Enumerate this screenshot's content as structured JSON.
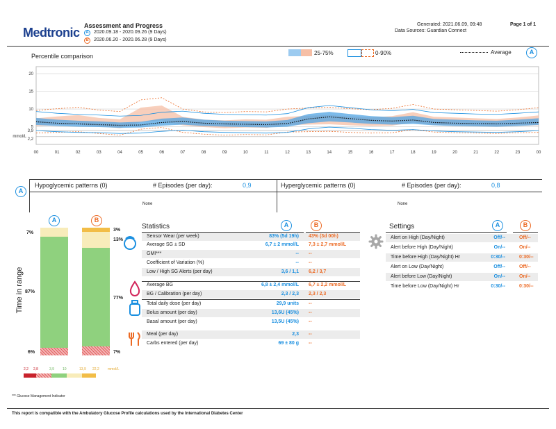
{
  "header": {
    "logo": "Medtronic",
    "title": "Assessment and Progress",
    "period_a": "2020.09.18 - 2020.09.26 (9 Days)",
    "period_b": "2020.06.20 - 2020.06.28 (9 Days)",
    "generated": "Generated: 2021.06.09, 09:48",
    "sources": "Data Sources: Guardian Connect",
    "page": "Page 1 of 1"
  },
  "chart": {
    "title": "Percentile comparison",
    "legend_band": "25-75%",
    "legend_range": "0-90%",
    "legend_avg": "Average",
    "badge": "A",
    "y_unit": "mmol/L",
    "y_ticks": [
      "20",
      "15",
      "10",
      "5"
    ],
    "low_limit": "2,2",
    "high_limit": "3,9",
    "hours": [
      "00",
      "01",
      "02",
      "03",
      "04",
      "05",
      "06",
      "07",
      "08",
      "09",
      "10",
      "11",
      "12",
      "13",
      "14",
      "15",
      "16",
      "17",
      "18",
      "19",
      "20",
      "21",
      "22",
      "23",
      "00"
    ]
  },
  "chart_data": {
    "type": "line",
    "title": "Percentile comparison",
    "ylabel": "mmol/L",
    "ylim": [
      0,
      22
    ],
    "x": [
      0,
      1,
      2,
      3,
      4,
      5,
      6,
      7,
      8,
      9,
      10,
      11,
      12,
      13,
      14,
      15,
      16,
      17,
      18,
      19,
      20,
      21,
      22,
      23,
      24
    ],
    "series": [
      {
        "name": "A Average",
        "values": [
          6.4,
          6.0,
          5.8,
          5.6,
          5.4,
          5.5,
          6.2,
          6.5,
          6.0,
          5.8,
          5.7,
          5.6,
          5.9,
          7.2,
          7.8,
          7.3,
          6.8,
          6.6,
          6.9,
          6.2,
          6.0,
          5.9,
          5.8,
          6.0,
          6.2
        ]
      },
      {
        "name": "A 25%",
        "values": [
          5.5,
          5.2,
          5.0,
          4.9,
          4.7,
          4.8,
          5.3,
          5.6,
          5.2,
          5.0,
          4.9,
          4.8,
          5.0,
          6.0,
          6.5,
          6.2,
          5.8,
          5.6,
          5.8,
          5.4,
          5.2,
          5.1,
          5.0,
          5.2,
          5.5
        ]
      },
      {
        "name": "A 75%",
        "values": [
          7.5,
          7.0,
          6.7,
          6.5,
          6.2,
          6.4,
          7.3,
          7.6,
          7.0,
          6.7,
          6.6,
          6.5,
          6.9,
          8.6,
          9.2,
          8.6,
          8.0,
          7.7,
          8.1,
          7.2,
          7.0,
          6.8,
          6.7,
          7.0,
          7.4
        ]
      },
      {
        "name": "B 25%",
        "values": [
          5.2,
          5.4,
          5.6,
          5.1,
          4.6,
          6.3,
          6.8,
          5.4,
          4.9,
          4.6,
          4.8,
          4.7,
          5.5,
          5.6,
          5.7,
          5.4,
          5.2,
          5.3,
          6.2,
          5.5,
          5.3,
          5.2,
          5.1,
          5.3,
          5.4
        ]
      },
      {
        "name": "B 75%",
        "values": [
          7.4,
          7.9,
          8.3,
          7.5,
          7.1,
          10.4,
          11.0,
          7.8,
          7.0,
          6.8,
          7.1,
          7.0,
          7.8,
          8.1,
          8.3,
          7.9,
          7.6,
          8.0,
          9.1,
          7.8,
          7.6,
          7.4,
          7.2,
          7.6,
          8.2
        ]
      }
    ]
  },
  "hypo": {
    "badge": "A",
    "label": "Hypoglycemic patterns (0)",
    "episodes_label": "# Episodes (per day):",
    "episodes_value": "0,9",
    "none": "None"
  },
  "hyper": {
    "label": "Hyperglycemic patterns (0)",
    "episodes_label": "# Episodes (per day):",
    "episodes_value": "0,8",
    "none": "None"
  },
  "tir": {
    "axis_label": "Time in range",
    "badge_a": "A",
    "badge_b": "B",
    "a": {
      "high": 7,
      "target": 87,
      "low": 6,
      "high_lbl": "7%",
      "target_lbl": "87%",
      "low_lbl": "6%"
    },
    "b": {
      "veryhigh": 3,
      "high": 13,
      "target": 77,
      "low": 7,
      "veryhigh_lbl": "3%",
      "high_lbl": "13%",
      "target_lbl": "77%",
      "low_lbl": "7%"
    },
    "scale": {
      "t1": "2,2",
      "t2": "2,8",
      "t3": "3,9",
      "t4": "10",
      "t5": "13,9",
      "t6": "22,2",
      "unit": "mmol/L"
    },
    "colors": {
      "veryhigh": "#f2bd47",
      "high": "#f8ecba",
      "target": "#8fd17e",
      "low": "#f3b6b6",
      "verylow": "#c8232c"
    }
  },
  "stats": {
    "title": "Statistics",
    "badge_a": "A",
    "badge_b": "B",
    "rows": [
      {
        "label": "Sensor Wear (per week)",
        "a": "83% (5d 19h)",
        "b": "43% (3d 00h)"
      },
      {
        "label": "Average SG ± SD",
        "a": "6,7 ± 2 mmol/L",
        "b": "7,3 ± 2,7 mmol/L"
      },
      {
        "label": "GMI***",
        "a": "--",
        "b": "--"
      },
      {
        "label": "Coefficient of Variation (%)",
        "a": "--",
        "b": "--"
      },
      {
        "label": "Low / High SG Alerts (per day)",
        "a": "3,6 / 1,1",
        "b": "6,2 / 3,7"
      },
      {
        "label": "Average BG",
        "a": "6,8 ± 2,4 mmol/L",
        "b": "6,7 ± 2,2 mmol/L"
      },
      {
        "label": "BG / Calibration (per day)",
        "a": "2,3 / 2,3",
        "b": "2,3 / 2,3"
      },
      {
        "label": "Total daily dose (per day)",
        "a": "29,9 units",
        "b": "--"
      },
      {
        "label": "Bolus amount (per day)",
        "a": "13,6U (45%)",
        "b": "--"
      },
      {
        "label": "Basal amount (per day)",
        "a": "13,5U (45%)",
        "b": "--"
      },
      {
        "label": "Meal (per day)",
        "a": "2,3",
        "b": "--"
      },
      {
        "label": "Carbs entered (per day)",
        "a": "69 ± 80 g",
        "b": "--"
      }
    ]
  },
  "settings": {
    "title": "Settings",
    "badge_a": "A",
    "badge_b": "B",
    "rows": [
      {
        "label": "Alert on High (Day/Night)",
        "a": "Off/--",
        "b": "Off/--"
      },
      {
        "label": "Alert before High (Day/Night)",
        "a": "On/--",
        "b": "On/--"
      },
      {
        "label": "Time before High (Day/Night) Hr",
        "a": "0:30/--",
        "b": "0:30/--"
      },
      {
        "label": "Alert on Low (Day/Night)",
        "a": "Off/--",
        "b": "Off/--"
      },
      {
        "label": "Alert before Low (Day/Night)",
        "a": "On/--",
        "b": "On/--"
      },
      {
        "label": "Time before Low (Day/Night) Hr",
        "a": "0:30/--",
        "b": "0:30/--"
      }
    ]
  },
  "footnote": "*** Glucose Management Indicator",
  "footer": "This report is compatible with the Ambulatory Glucose Profile calculations used by the International Diabetes Center",
  "colors": {
    "a": "#1a8fe0",
    "b": "#ec6a24",
    "band_a": "#4fa3e3",
    "band_b": "#f6bfa6"
  }
}
